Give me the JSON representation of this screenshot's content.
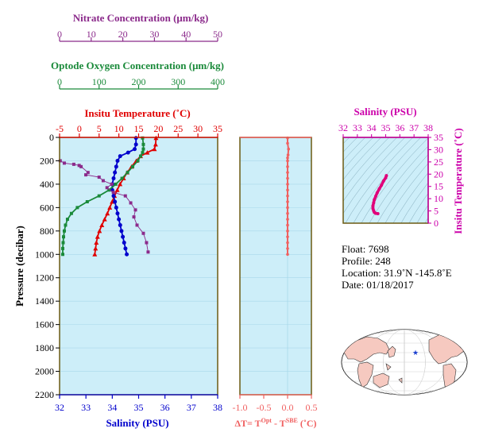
{
  "colors": {
    "nitrate": "#8b2a8b",
    "oxygen": "#1a8a3a",
    "temperature": "#e00000",
    "salinity": "#0000cc",
    "delta": "#f06060",
    "ts_axis": "#cc00aa",
    "plot_bg": "#cdeef9",
    "frame": "#6b5a12",
    "map_land": "#f6c9c0"
  },
  "labels": {
    "nitrate_title": "Nitrate Concentration (μm/kg)",
    "oxygen_title": "Optode Oxygen Concentration (μm/kg)",
    "temp_title": "Insitu Temperature (˚C)",
    "salinity_title": "Salinity (PSU)",
    "pressure_title": "Pressure (decibar)",
    "delta_title_main": "ΔT= T",
    "delta_title_sup1": "Opt",
    "delta_title_mid": " - T",
    "delta_title_sup2": "SBE",
    "delta_title_end": " (˚C)",
    "ts_top_title": "Salinity (PSU)",
    "ts_right_title": "Insitu Temperature (˚C)"
  },
  "info": {
    "float": "Float:  7698",
    "profile": "Profile:  248",
    "location": "Location:  31.9˚N  -145.8˚E",
    "date": "Date:  01/18/2017"
  },
  "axes": {
    "nitrate_ticks": [
      "0",
      "10",
      "20",
      "30",
      "40",
      "50"
    ],
    "oxygen_ticks": [
      "0",
      "100",
      "200",
      "300",
      "400"
    ],
    "temp_ticks": [
      "-5",
      "0",
      "5",
      "10",
      "15",
      "20",
      "25",
      "30",
      "35"
    ],
    "salinity_ticks": [
      "32",
      "33",
      "34",
      "35",
      "36",
      "37",
      "38"
    ],
    "pressure_ticks": [
      "0",
      "200",
      "400",
      "600",
      "800",
      "1000",
      "1200",
      "1400",
      "1600",
      "1800",
      "2000",
      "2200"
    ],
    "delta_ticks": [
      "-1.0",
      "-0.5",
      "0.0",
      "0.5"
    ],
    "ts_sal_ticks": [
      "32",
      "33",
      "34",
      "35",
      "36",
      "37",
      "38"
    ],
    "ts_temp_ticks": [
      "0",
      "5",
      "10",
      "15",
      "20",
      "25",
      "30",
      "35"
    ]
  },
  "chart_data": [
    {
      "type": "line",
      "ylabel": "Pressure (decibar)",
      "ylim": [
        2200,
        0
      ],
      "series": [
        {
          "name": "Insitu Temperature (˚C)",
          "xlim": [
            -5,
            35
          ],
          "x": [
            19.4,
            19.3,
            19.0,
            17.2,
            15.5,
            14.4,
            13.2,
            12.1,
            11.2,
            10.3,
            9.6,
            8.9,
            8.3,
            7.7,
            7.1,
            6.4,
            5.7,
            5.1,
            4.6,
            4.3,
            4.1,
            3.9
          ],
          "y": [
            5,
            60,
            100,
            130,
            160,
            200,
            250,
            300,
            350,
            400,
            450,
            500,
            550,
            600,
            650,
            700,
            750,
            800,
            850,
            900,
            950,
            1000
          ]
        },
        {
          "name": "Salinity (PSU)",
          "xlim": [
            32,
            38
          ],
          "x": [
            34.9,
            34.9,
            34.85,
            34.6,
            34.3,
            34.2,
            34.15,
            34.1,
            34.05,
            34.0,
            34.0,
            34.05,
            34.1,
            34.15,
            34.2,
            34.25,
            34.3,
            34.35,
            34.4,
            34.45,
            34.5,
            34.55
          ],
          "y": [
            5,
            60,
            100,
            130,
            160,
            200,
            250,
            300,
            350,
            400,
            450,
            500,
            550,
            600,
            650,
            700,
            750,
            800,
            850,
            900,
            950,
            1000
          ]
        },
        {
          "name": "Optode Oxygen Concentration (μm/kg)",
          "xlim": [
            0,
            400
          ],
          "x": [
            210,
            212,
            212,
            210,
            205,
            198,
            185,
            172,
            158,
            142,
            125,
            100,
            70,
            45,
            30,
            20,
            15,
            12,
            10,
            9,
            8,
            8
          ],
          "y": [
            5,
            60,
            100,
            130,
            160,
            200,
            250,
            300,
            350,
            400,
            450,
            500,
            550,
            600,
            650,
            700,
            750,
            800,
            850,
            900,
            950,
            1000
          ]
        },
        {
          "name": "Nitrate Concentration (μm/kg)",
          "xlim": [
            0,
            50
          ],
          "x": [
            0.2,
            1.5,
            4.5,
            6.2,
            6.8,
            9.0,
            8.3,
            12.5,
            13.8,
            16.5,
            15.0,
            17.0,
            20.8,
            22.5,
            24.0,
            23.5,
            24.5,
            26.5,
            27.5,
            28.0
          ],
          "y": [
            200,
            220,
            230,
            240,
            250,
            300,
            320,
            340,
            370,
            400,
            430,
            470,
            500,
            560,
            620,
            680,
            750,
            820,
            900,
            980
          ]
        }
      ]
    },
    {
      "type": "scatter",
      "xlabel": "ΔT= TOpt - TSBE (˚C)",
      "xlim": [
        -1.0,
        0.5
      ],
      "ylim": [
        2200,
        0
      ],
      "x": [
        0.0,
        0.0,
        0.02,
        0.01,
        0.0,
        0.0,
        0.0,
        0.0,
        0.0,
        0.0,
        0.0,
        0.0,
        0.0,
        0.0,
        0.0,
        0.0,
        0.0,
        0.0,
        0.0,
        0.0,
        0.0,
        0.0
      ],
      "y": [
        5,
        50,
        100,
        150,
        175,
        200,
        250,
        300,
        350,
        400,
        450,
        500,
        550,
        600,
        650,
        700,
        750,
        800,
        850,
        900,
        950,
        1000
      ]
    },
    {
      "type": "scatter",
      "xlabel": "Salinity (PSU)",
      "ylabel": "Insitu Temperature (˚C)",
      "xlim": [
        32,
        38
      ],
      "ylim": [
        0,
        35
      ],
      "x": [
        35.05,
        35.0,
        34.85,
        34.7,
        34.55,
        34.4,
        34.3,
        34.2,
        34.15,
        34.1,
        34.1,
        34.15,
        34.2,
        34.3,
        34.45
      ],
      "y": [
        19.4,
        18.5,
        17.2,
        15.5,
        14.0,
        12.4,
        11.0,
        9.6,
        8.3,
        7.1,
        6.0,
        5.1,
        4.4,
        4.0,
        3.9
      ]
    }
  ]
}
